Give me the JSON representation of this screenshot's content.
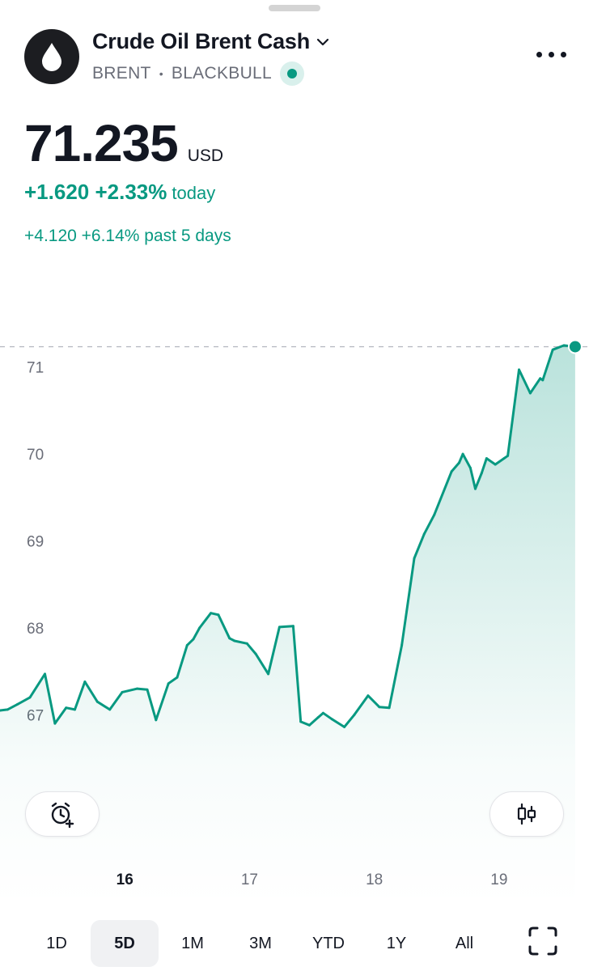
{
  "symbol": {
    "name": "Crude Oil Brent Cash",
    "ticker": "BRENT",
    "separator": "•",
    "exchange": "BLACKBULL"
  },
  "price": {
    "value": "71.235",
    "currency": "USD",
    "change_today": "+1.620 +2.33%",
    "change_today_label": "today",
    "change_5d": "+4.120 +6.14% past 5 days"
  },
  "colors": {
    "accent": "#089981",
    "text": "#131722",
    "muted": "#6a6d78"
  },
  "icons": {
    "logo": "oil-drop-icon",
    "title_dropdown": "chevron-down-icon",
    "menu": "more-icon",
    "alert": "add-alarm-icon",
    "chart_type": "candlestick-icon",
    "fullscreen": "fullscreen-icon"
  },
  "ranges": [
    "1D",
    "5D",
    "1M",
    "3M",
    "YTD",
    "1Y",
    "All"
  ],
  "active_range": "5D",
  "chart_data": {
    "type": "area",
    "ylim": [
      66.1,
      71.5
    ],
    "y_ticks": [
      "67",
      "68",
      "69",
      "70",
      "71"
    ],
    "x_ticks": [
      {
        "label": "16",
        "day": 16,
        "bold": true
      },
      {
        "label": "17",
        "day": 17,
        "bold": false
      },
      {
        "label": "18",
        "day": 18,
        "bold": false
      },
      {
        "label": "19",
        "day": 19,
        "bold": false
      }
    ],
    "x_range": [
      15.02,
      19.65
    ],
    "last_value": 71.235,
    "series": [
      {
        "x": [
          15.02,
          15.08,
          15.16,
          15.26,
          15.38,
          15.46,
          15.55,
          15.62,
          15.7,
          15.8,
          15.9,
          16.0,
          16.12,
          16.2,
          16.27,
          16.37,
          16.44,
          16.52,
          16.57,
          16.62,
          16.71,
          16.77,
          16.86,
          16.9,
          17.0,
          17.07,
          17.17,
          17.26,
          17.37,
          17.43,
          17.5,
          17.57,
          17.61,
          17.68,
          17.78,
          17.86,
          17.97,
          18.06,
          18.14,
          18.24,
          18.34,
          18.42,
          18.5,
          18.64,
          18.7,
          18.73,
          18.79,
          18.83,
          18.88,
          18.92,
          18.99,
          19.06,
          19.09,
          19.18,
          19.27,
          19.35,
          19.37,
          19.45,
          19.54,
          19.63
        ],
        "y": [
          67.05,
          67.06,
          67.12,
          67.2,
          67.47,
          66.9,
          67.08,
          67.06,
          67.38,
          67.15,
          67.06,
          67.26,
          67.3,
          67.29,
          66.94,
          67.36,
          67.43,
          67.8,
          67.87,
          68.0,
          68.17,
          68.15,
          67.88,
          67.85,
          67.82,
          67.7,
          67.47,
          68.01,
          68.02,
          66.92,
          66.88,
          66.97,
          67.02,
          66.95,
          66.86,
          67.0,
          67.22,
          67.09,
          67.08,
          67.8,
          68.8,
          69.08,
          69.3,
          69.8,
          69.9,
          70.0,
          69.84,
          69.6,
          69.78,
          69.95,
          69.88,
          69.95,
          69.98,
          70.97,
          70.7,
          70.87,
          70.85,
          71.2,
          71.25,
          71.235
        ]
      }
    ]
  }
}
